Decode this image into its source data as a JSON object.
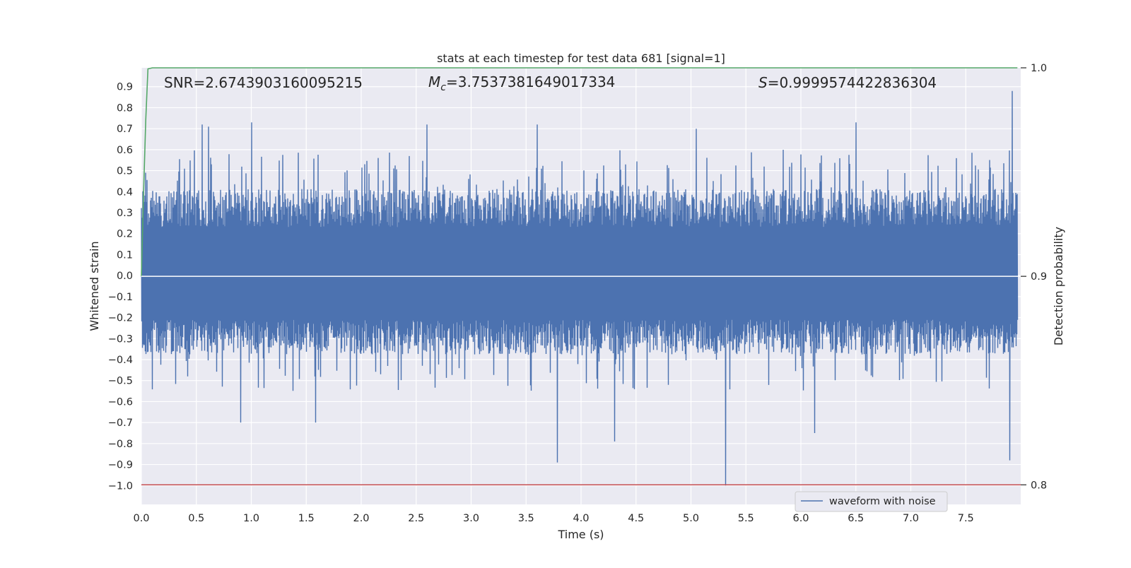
{
  "chart_data": {
    "type": "line",
    "title": "stats at each timestep for test data 681 [signal=1]",
    "xlabel": "Time (s)",
    "ylabel": "Whitened strain",
    "y2label": "Detection probability",
    "xlim": [
      0.0,
      8.0
    ],
    "ylim": [
      -1.09,
      0.99
    ],
    "y2lim": [
      0.7906,
      1.0
    ],
    "x_ticks": [
      0.0,
      0.5,
      1.0,
      1.5,
      2.0,
      2.5,
      3.0,
      3.5,
      4.0,
      4.5,
      5.0,
      5.5,
      6.0,
      6.5,
      7.0,
      7.5
    ],
    "x_tick_labels": [
      "0.0",
      "0.5",
      "1.0",
      "1.5",
      "2.0",
      "2.5",
      "3.0",
      "3.5",
      "4.0",
      "4.5",
      "5.0",
      "5.5",
      "6.0",
      "6.5",
      "7.0",
      "7.5"
    ],
    "y_ticks": [
      0.9,
      0.8,
      0.7,
      0.6,
      0.5,
      0.4,
      0.3,
      0.2,
      0.1,
      0.0,
      -0.1,
      -0.2,
      -0.3,
      -0.4,
      -0.5,
      -0.6,
      -0.7,
      -0.8,
      -0.9,
      -1.0
    ],
    "y_tick_labels": [
      "0.9",
      "0.8",
      "0.7",
      "0.6",
      "0.5",
      "0.4",
      "0.3",
      "0.2",
      "0.1",
      "0.0",
      "−0.1",
      "−0.2",
      "−0.3",
      "−0.4",
      "−0.5",
      "−0.6",
      "−0.7",
      "−0.8",
      "−0.9",
      "−1.0"
    ],
    "y2_ticks": [
      1.0,
      0.9,
      0.8
    ],
    "y2_tick_labels": [
      "1.0",
      "0.9",
      "0.8"
    ],
    "grid": true,
    "legend_position": "lower-right",
    "annotations": {
      "snr": "SNR=2.6743903160095215",
      "mc_symbol": "M",
      "mc_sub": "c",
      "mc_value": "=3.7537381649017334",
      "s_symbol": "S",
      "s_value": "=0.9999574422836304"
    },
    "series": [
      {
        "name": "waveform with noise",
        "axis": "left",
        "color": "#4c72b0",
        "x_range": [
          0.0,
          7.97
        ],
        "envelope_upper_typical": 0.33,
        "envelope_lower_typical": -0.3,
        "peaks": [
          {
            "x": 0.55,
            "y": 0.72
          },
          {
            "x": 0.61,
            "y": 0.71
          },
          {
            "x": 1.0,
            "y": 0.73
          },
          {
            "x": 2.6,
            "y": 0.72
          },
          {
            "x": 3.6,
            "y": 0.72
          },
          {
            "x": 5.05,
            "y": 0.7
          },
          {
            "x": 6.5,
            "y": 0.73
          },
          {
            "x": 7.92,
            "y": 0.88
          }
        ],
        "troughs": [
          {
            "x": 0.9,
            "y": -0.7
          },
          {
            "x": 1.58,
            "y": -0.7
          },
          {
            "x": 3.78,
            "y": -0.89
          },
          {
            "x": 4.3,
            "y": -0.79
          },
          {
            "x": 5.31,
            "y": -1.0
          },
          {
            "x": 6.12,
            "y": -0.75
          },
          {
            "x": 7.9,
            "y": -0.88
          }
        ]
      },
      {
        "name": "",
        "axis": "right",
        "color": "#55a868",
        "x": [
          0.0,
          0.02,
          0.04,
          0.06,
          0.1,
          7.97
        ],
        "values": [
          0.9,
          0.94,
          0.975,
          0.9995,
          1.0,
          1.0
        ]
      },
      {
        "name": "",
        "axis": "right",
        "color": "#c44e52",
        "x": [
          0.0,
          8.0
        ],
        "values": [
          0.8,
          0.8
        ]
      },
      {
        "name": "",
        "axis": "right",
        "color": "#ffffff",
        "x": [
          0.0,
          8.0
        ],
        "values": [
          0.9,
          0.9
        ]
      }
    ]
  }
}
